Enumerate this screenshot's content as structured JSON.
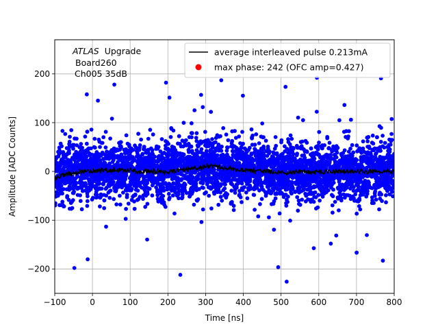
{
  "chart_data": {
    "type": "scatter",
    "title": "",
    "xlabel": "Time [ns]",
    "ylabel": "Amplitude [ADC Counts]",
    "xlim": [
      -100,
      800
    ],
    "ylim": [
      -250,
      270
    ],
    "xticks": [
      -100,
      0,
      100,
      200,
      300,
      400,
      500,
      600,
      700,
      800
    ],
    "yticks": [
      -200,
      -100,
      0,
      100,
      200
    ],
    "grid": true,
    "annotation": {
      "experiment": "ATLAS",
      "tag": "Upgrade",
      "board": "Board260",
      "channel": "Ch005 35dB"
    },
    "legend": {
      "location": "top-right",
      "entries": [
        {
          "label": "average interleaved pulse 0.213mA",
          "marker": "line",
          "color": "#000000"
        },
        {
          "label": "max phase: 242 (OFC amp=0.427)",
          "marker": "dot",
          "color": "#ff0000"
        }
      ]
    },
    "series": [
      {
        "name": "samples",
        "kind": "scatter",
        "color": "#0000ff",
        "core_sigma": 28,
        "outliers": [
          [
            -48,
            -198
          ],
          [
            233,
            -212
          ],
          [
            -15,
            158
          ],
          [
            58,
            178
          ],
          [
            195,
            182
          ],
          [
            288,
            157
          ],
          [
            595,
            192
          ],
          [
            765,
            191
          ],
          [
            632,
            -148
          ],
          [
            770,
            -183
          ]
        ]
      },
      {
        "name": "average interleaved pulse",
        "kind": "line",
        "color": "#000000",
        "x": [
          -100,
          -80,
          -60,
          -40,
          -20,
          0,
          50,
          100,
          150,
          200,
          250,
          280,
          300,
          330,
          360,
          400,
          450,
          500,
          600,
          700,
          800
        ],
        "y": [
          -15,
          -8,
          -4,
          -2,
          2,
          2,
          3,
          2,
          0,
          -1,
          4,
          7,
          10,
          10,
          6,
          3,
          0,
          -2,
          -1,
          0,
          0
        ]
      }
    ]
  }
}
